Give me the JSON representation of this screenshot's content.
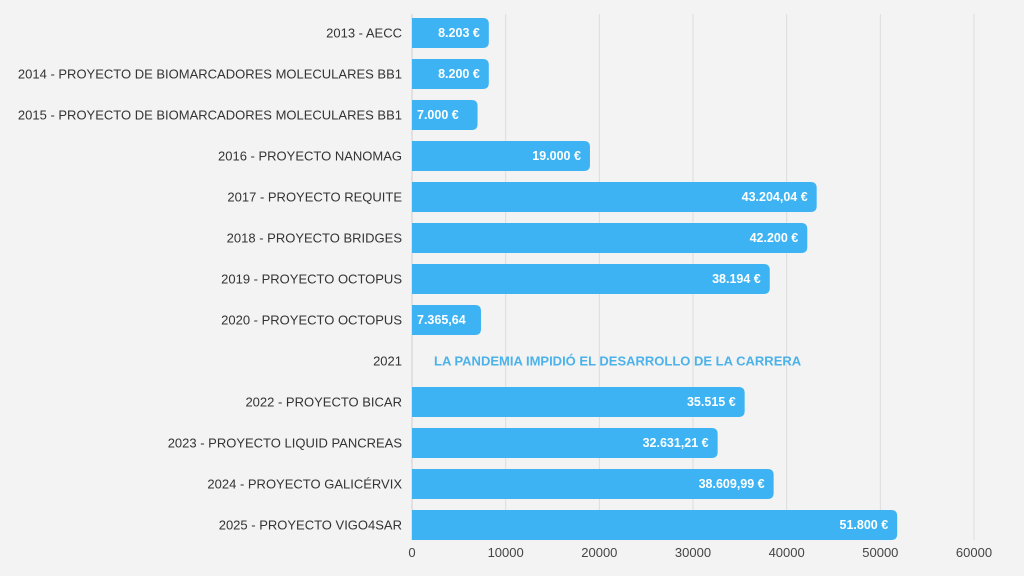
{
  "chart_data": {
    "type": "bar",
    "orientation": "horizontal",
    "categories": [
      "2013 - AECC",
      "2014 - PROYECTO DE BIOMARCADORES MOLECULARES BB1",
      "2015 - PROYECTO DE BIOMARCADORES MOLECULARES BB1",
      "2016 - PROYECTO NANOMAG",
      "2017 - PROYECTO REQUITE",
      "2018 - PROYECTO BRIDGES",
      "2019 - PROYECTO OCTOPUS",
      "2020 - PROYECTO OCTOPUS",
      "2021",
      "2022 - PROYECTO BICAR",
      "2023 - PROYECTO LIQUID PANCREAS",
      "2024 - PROYECTO GALICÉRVIX",
      "2025 - PROYECTO VIGO4SAR"
    ],
    "values": [
      8203,
      8200,
      7000,
      19000,
      43204.04,
      42200,
      38194,
      7365.64,
      null,
      35515,
      32631.21,
      38609.99,
      51800
    ],
    "data_labels": [
      "8.203 €",
      "8.200 €",
      "7.000 €",
      "19.000 €",
      "43.204,04 €",
      "42.200 €",
      "38.194 €",
      "7.365,64",
      "",
      "35.515 €",
      "32.631,21 €",
      "38.609,99 €",
      "51.800 €"
    ],
    "annotation": {
      "category": "2021",
      "text": "LA PANDEMIA IMPIDIÓ EL DESARROLLO DE LA CARRERA"
    },
    "xlim": [
      0,
      60000
    ],
    "xticks": [
      "0",
      "10000",
      "20000",
      "30000",
      "40000",
      "50000",
      "60000"
    ],
    "grid": "vertical",
    "title": "",
    "xlabel": "",
    "ylabel": "",
    "colors": {
      "bar": "#3db3f4",
      "annotation": "#4bb2ea",
      "grid": "#dcdcdc",
      "background": "#f3f3f3"
    }
  }
}
